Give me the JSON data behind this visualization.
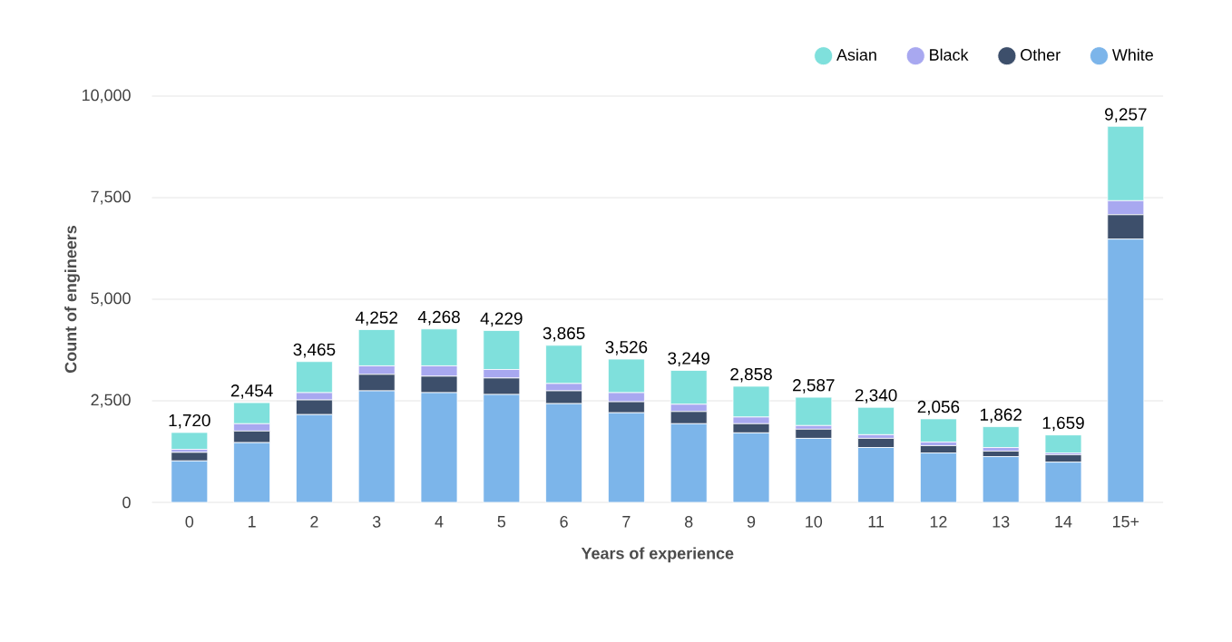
{
  "chart_data": {
    "type": "bar",
    "stacked": true,
    "xlabel": "Years of experience",
    "ylabel": "Count of engineers",
    "categories": [
      "0",
      "1",
      "2",
      "3",
      "4",
      "5",
      "6",
      "7",
      "8",
      "9",
      "10",
      "11",
      "12",
      "13",
      "14",
      "15+"
    ],
    "series": [
      {
        "name": "White",
        "color": "#7cb5ea",
        "values": [
          1020,
          1470,
          2160,
          2745,
          2700,
          2655,
          2430,
          2205,
          1935,
          1710,
          1575,
          1350,
          1215,
          1125,
          990,
          6480
        ]
      },
      {
        "name": "Other",
        "color": "#3d4f6b",
        "values": [
          210,
          285,
          360,
          405,
          405,
          405,
          315,
          270,
          300,
          225,
          225,
          225,
          180,
          135,
          180,
          600
        ]
      },
      {
        "name": "Black",
        "color": "#a8a8f0",
        "values": [
          75,
          180,
          180,
          210,
          255,
          210,
          180,
          225,
          180,
          165,
          90,
          90,
          90,
          90,
          45,
          345
        ]
      },
      {
        "name": "Asian",
        "color": "#7fe0dc",
        "values": [
          415,
          519,
          765,
          892,
          908,
          959,
          940,
          826,
          834,
          758,
          697,
          675,
          571,
          512,
          444,
          1832
        ]
      }
    ],
    "totals": [
      "1,720",
      "2,454",
      "3,465",
      "4,252",
      "4,268",
      "4,229",
      "3,865",
      "3,526",
      "3,249",
      "2,858",
      "2,587",
      "2,340",
      "2,056",
      "1,862",
      "1,659",
      "9,257"
    ],
    "ylim": [
      0,
      10000
    ],
    "yticks": [
      0,
      {
        "value": 2500,
        "label": "2,500"
      },
      {
        "value": 5000,
        "label": "5,000"
      },
      {
        "value": 7500,
        "label": "7,500"
      },
      {
        "value": 10000,
        "label": "10,000"
      }
    ],
    "grid": "y",
    "legend": "top right"
  }
}
